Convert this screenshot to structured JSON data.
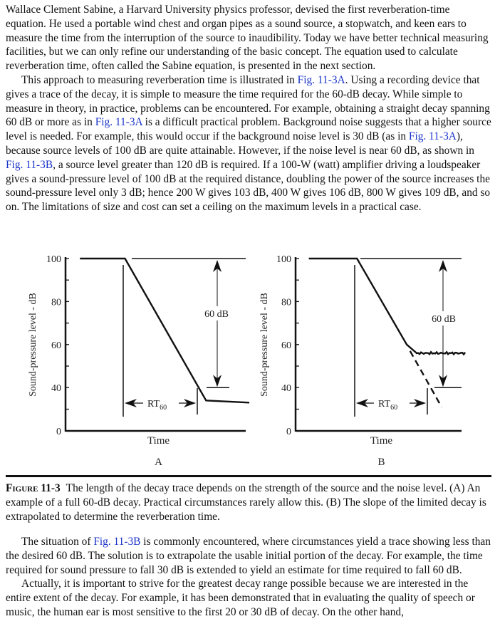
{
  "paragraphs_top": [
    {
      "indent": false,
      "segments": [
        {
          "t": "Wallace Clement Sabine, a Harvard University physics professor, devised the first reverberation-time equation. He used a portable wind chest and organ pipes as a sound source, a stopwatch, and keen ears to measure the time from the interruption of the source to inaudibility. Today we have better technical measuring facilities, but we can only refine our understanding of the basic concept. The equation used to calculate reverberation time, often called the Sabine equation, is presented in the next section."
        }
      ]
    },
    {
      "indent": true,
      "segments": [
        {
          "t": "This approach to measuring reverberation time is illustrated in "
        },
        {
          "t": "Fig. 11-3A",
          "link": true
        },
        {
          "t": ". Using a recording device that gives a trace of the decay, it is simple to measure the time required for the 60-dB decay. While simple to measure in theory, in practice, problems can be encountered. For example, obtaining a straight decay spanning 60 dB or more as in "
        },
        {
          "t": "Fig. 11-3A",
          "link": true
        },
        {
          "t": " is a difficult practical problem. Background noise suggests that a higher source level is needed. For example, this would occur if the background noise level is 30 dB (as in "
        },
        {
          "t": "Fig. 11-3A",
          "link": true
        },
        {
          "t": "), because source levels of 100 dB are quite attainable. However, if the noise level is near 60 dB, as shown in "
        },
        {
          "t": "Fig. 11-3B",
          "link": true
        },
        {
          "t": ", a source level greater than 120 dB is required. If a 100-W (watt) amplifier driving a loudspeaker gives a sound-pressure level of 100 dB at the required distance, doubling the power of the source increases the sound-pressure level only 3 dB; hence 200 W gives 103 dB, 400 W gives 106 dB, 800 W gives 109 dB, and so on. The limitations of size and cost can set a ceiling on the maximum levels in a practical case."
        }
      ]
    }
  ],
  "figure": {
    "label": "Figure 11-3",
    "caption": "The length of the decay trace depends on the strength of the source and the noise level. (A) An example of a full 60-dB decay. Practical circumstances rarely allow this. (B) The slope of the limited decay is extrapolated to determine the reverberation time.",
    "link_color": "#1a33c8"
  },
  "chart_data": [
    {
      "type": "line",
      "panel": "A",
      "xlabel": "Time",
      "ylabel": "Sound-pressure level - dB",
      "ytick_labels": [
        "0",
        "40",
        "60",
        "80",
        "100"
      ],
      "ylim": [
        0,
        100
      ],
      "grid": false,
      "series": [
        {
          "x": [
            0.8,
            3.3,
            7.8,
            10.2
          ],
          "y": [
            100,
            100,
            28,
            26
          ],
          "style": "solid"
        }
      ],
      "annotations": {
        "span": "60 dB",
        "rt": "RT",
        "rt_sub": "60"
      }
    },
    {
      "type": "line",
      "panel": "B",
      "xlabel": "Time",
      "ylabel": "Sound-pressure level - dB",
      "ytick_labels": [
        "0",
        "40",
        "60",
        "80",
        "100"
      ],
      "ylim": [
        0,
        100
      ],
      "grid": false,
      "series": [
        {
          "x": [
            0.8,
            3.7,
            6.7,
            7.3,
            10.3
          ],
          "y": [
            100,
            100,
            60,
            56,
            56
          ],
          "style": "solid"
        },
        {
          "x": [
            6.9,
            8.8
          ],
          "y": [
            57,
            22
          ],
          "style": "dashed"
        }
      ],
      "annotations": {
        "span": "60 dB",
        "rt": "RT",
        "rt_sub": "60"
      }
    }
  ],
  "paragraphs_bottom": [
    {
      "indent": true,
      "segments": [
        {
          "t": "The situation of "
        },
        {
          "t": "Fig. 11-3B",
          "link": true
        },
        {
          "t": " is commonly encountered, where circumstances yield a trace showing less than the desired 60 dB. The solution is to extrapolate the usable initial portion of the decay. For example, the time required for sound pressure to fall 30 dB is extended to yield an estimate for time required to fall 60 dB."
        }
      ]
    },
    {
      "indent": true,
      "segments": [
        {
          "t": "Actually, it is important to strive for the greatest decay range possible because we are interested in the entire extent of the decay. For example, it has been demonstrated that in evaluating the quality of speech or music, the human ear is most sensitive to the first 20 or 30 dB of decay. On the other hand,"
        }
      ]
    }
  ]
}
